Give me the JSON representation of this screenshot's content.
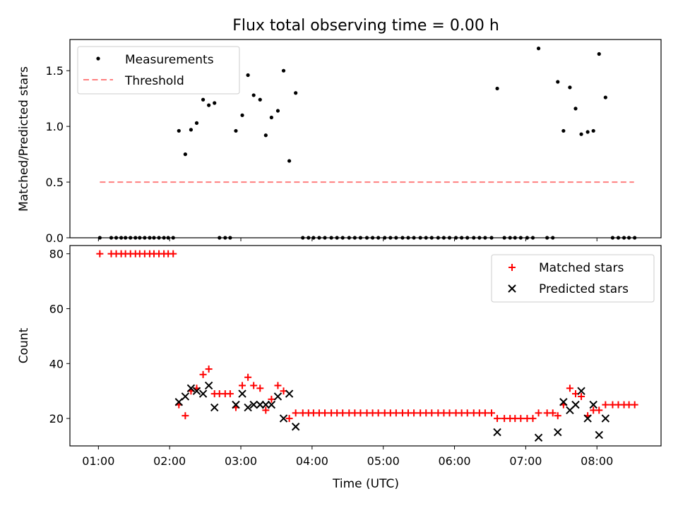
{
  "figure": {
    "title": "Flux total observing time = 0.00 h"
  },
  "chart_data": [
    {
      "type": "scatter",
      "ylabel": "Matched/Predicted stars",
      "ylim": [
        0,
        1.78
      ],
      "xlim_hours": [
        0.6,
        8.9
      ],
      "yticks": [
        {
          "value": 0.0,
          "label": "0.0"
        },
        {
          "value": 0.5,
          "label": "0.5"
        },
        {
          "value": 1.0,
          "label": "1.0"
        },
        {
          "value": 1.5,
          "label": "1.5"
        }
      ],
      "legend_position": "top-left",
      "legend": [
        {
          "label": "Measurements",
          "marker": "dot",
          "color": "#000000"
        },
        {
          "label": "Threshold",
          "marker": "dashed-line",
          "color": "#ff7f7f"
        }
      ],
      "threshold": {
        "value": 0.5,
        "x_range": [
          1.02,
          8.52
        ],
        "color": "#ff7f7f"
      },
      "series": [
        {
          "name": "Measurements",
          "color": "#000000",
          "points": [
            [
              1.02,
              0
            ],
            [
              1.18,
              0
            ],
            [
              1.25,
              0
            ],
            [
              1.32,
              0
            ],
            [
              1.38,
              0
            ],
            [
              1.45,
              0
            ],
            [
              1.52,
              0
            ],
            [
              1.58,
              0
            ],
            [
              1.65,
              0
            ],
            [
              1.72,
              0
            ],
            [
              1.78,
              0
            ],
            [
              1.85,
              0
            ],
            [
              1.92,
              0
            ],
            [
              1.98,
              0
            ],
            [
              2.05,
              0
            ],
            [
              2.13,
              0.96
            ],
            [
              2.22,
              0.75
            ],
            [
              2.3,
              0.97
            ],
            [
              2.38,
              1.03
            ],
            [
              2.47,
              1.24
            ],
            [
              2.55,
              1.19
            ],
            [
              2.63,
              1.21
            ],
            [
              2.7,
              0
            ],
            [
              2.78,
              0
            ],
            [
              2.85,
              0
            ],
            [
              2.93,
              0.96
            ],
            [
              3.02,
              1.1
            ],
            [
              3.1,
              1.46
            ],
            [
              3.18,
              1.28
            ],
            [
              3.27,
              1.24
            ],
            [
              3.35,
              0.92
            ],
            [
              3.43,
              1.08
            ],
            [
              3.52,
              1.14
            ],
            [
              3.6,
              1.5
            ],
            [
              3.68,
              0.69
            ],
            [
              3.77,
              1.3
            ],
            [
              3.87,
              0
            ],
            [
              3.95,
              0
            ],
            [
              4.02,
              0
            ],
            [
              4.1,
              0
            ],
            [
              4.18,
              0
            ],
            [
              4.27,
              0
            ],
            [
              4.35,
              0
            ],
            [
              4.43,
              0
            ],
            [
              4.52,
              0
            ],
            [
              4.6,
              0
            ],
            [
              4.68,
              0
            ],
            [
              4.77,
              0
            ],
            [
              4.85,
              0
            ],
            [
              4.93,
              0
            ],
            [
              5.02,
              0
            ],
            [
              5.1,
              0
            ],
            [
              5.18,
              0
            ],
            [
              5.27,
              0
            ],
            [
              5.35,
              0
            ],
            [
              5.43,
              0
            ],
            [
              5.52,
              0
            ],
            [
              5.6,
              0
            ],
            [
              5.68,
              0
            ],
            [
              5.77,
              0
            ],
            [
              5.85,
              0
            ],
            [
              5.93,
              0
            ],
            [
              6.02,
              0
            ],
            [
              6.1,
              0
            ],
            [
              6.18,
              0
            ],
            [
              6.27,
              0
            ],
            [
              6.35,
              0
            ],
            [
              6.43,
              0
            ],
            [
              6.52,
              0
            ],
            [
              6.6,
              1.34
            ],
            [
              6.7,
              0
            ],
            [
              6.78,
              0
            ],
            [
              6.85,
              0
            ],
            [
              6.93,
              0
            ],
            [
              7.02,
              0
            ],
            [
              7.1,
              0
            ],
            [
              7.18,
              1.7
            ],
            [
              7.3,
              0
            ],
            [
              7.38,
              0
            ],
            [
              7.45,
              1.4
            ],
            [
              7.53,
              0.96
            ],
            [
              7.62,
              1.35
            ],
            [
              7.7,
              1.16
            ],
            [
              7.78,
              0.93
            ],
            [
              7.87,
              0.95
            ],
            [
              7.95,
              0.96
            ],
            [
              8.03,
              1.65
            ],
            [
              8.12,
              1.26
            ],
            [
              8.22,
              0
            ],
            [
              8.3,
              0
            ],
            [
              8.38,
              0
            ],
            [
              8.45,
              0
            ],
            [
              8.53,
              0
            ]
          ]
        }
      ]
    },
    {
      "type": "scatter",
      "ylabel": "Count",
      "xlabel": "Time (UTC)",
      "ylim": [
        10,
        83
      ],
      "xlim_hours": [
        0.6,
        8.9
      ],
      "yticks": [
        {
          "value": 20,
          "label": "20"
        },
        {
          "value": 40,
          "label": "40"
        },
        {
          "value": 60,
          "label": "60"
        },
        {
          "value": 80,
          "label": "80"
        }
      ],
      "xticks": [
        {
          "value": 1,
          "label": "01:00"
        },
        {
          "value": 2,
          "label": "02:00"
        },
        {
          "value": 3,
          "label": "03:00"
        },
        {
          "value": 4,
          "label": "04:00"
        },
        {
          "value": 5,
          "label": "05:00"
        },
        {
          "value": 6,
          "label": "06:00"
        },
        {
          "value": 7,
          "label": "07:00"
        },
        {
          "value": 8,
          "label": "08:00"
        }
      ],
      "legend_position": "top-right",
      "legend": [
        {
          "label": "Matched stars",
          "marker": "plus",
          "color": "#ff0000"
        },
        {
          "label": "Predicted stars",
          "marker": "x",
          "color": "#000000"
        }
      ],
      "series": [
        {
          "name": "Matched stars",
          "color": "#ff0000",
          "marker": "plus",
          "points": [
            [
              1.02,
              80
            ],
            [
              1.18,
              80
            ],
            [
              1.25,
              80
            ],
            [
              1.32,
              80
            ],
            [
              1.38,
              80
            ],
            [
              1.45,
              80
            ],
            [
              1.52,
              80
            ],
            [
              1.58,
              80
            ],
            [
              1.65,
              80
            ],
            [
              1.72,
              80
            ],
            [
              1.78,
              80
            ],
            [
              1.85,
              80
            ],
            [
              1.92,
              80
            ],
            [
              1.98,
              80
            ],
            [
              2.05,
              80
            ],
            [
              2.13,
              25
            ],
            [
              2.22,
              21
            ],
            [
              2.3,
              30
            ],
            [
              2.38,
              31
            ],
            [
              2.47,
              36
            ],
            [
              2.55,
              38
            ],
            [
              2.63,
              29
            ],
            [
              2.7,
              29
            ],
            [
              2.78,
              29
            ],
            [
              2.85,
              29
            ],
            [
              2.93,
              24
            ],
            [
              3.02,
              32
            ],
            [
              3.1,
              35
            ],
            [
              3.18,
              32
            ],
            [
              3.27,
              31
            ],
            [
              3.35,
              23
            ],
            [
              3.43,
              27
            ],
            [
              3.52,
              32
            ],
            [
              3.6,
              30
            ],
            [
              3.68,
              20
            ],
            [
              3.77,
              22
            ],
            [
              3.87,
              22
            ],
            [
              3.95,
              22
            ],
            [
              4.02,
              22
            ],
            [
              4.1,
              22
            ],
            [
              4.18,
              22
            ],
            [
              4.27,
              22
            ],
            [
              4.35,
              22
            ],
            [
              4.43,
              22
            ],
            [
              4.52,
              22
            ],
            [
              4.6,
              22
            ],
            [
              4.68,
              22
            ],
            [
              4.77,
              22
            ],
            [
              4.85,
              22
            ],
            [
              4.93,
              22
            ],
            [
              5.02,
              22
            ],
            [
              5.1,
              22
            ],
            [
              5.18,
              22
            ],
            [
              5.27,
              22
            ],
            [
              5.35,
              22
            ],
            [
              5.43,
              22
            ],
            [
              5.52,
              22
            ],
            [
              5.6,
              22
            ],
            [
              5.68,
              22
            ],
            [
              5.77,
              22
            ],
            [
              5.85,
              22
            ],
            [
              5.93,
              22
            ],
            [
              6.02,
              22
            ],
            [
              6.1,
              22
            ],
            [
              6.18,
              22
            ],
            [
              6.27,
              22
            ],
            [
              6.35,
              22
            ],
            [
              6.43,
              22
            ],
            [
              6.52,
              22
            ],
            [
              6.6,
              20
            ],
            [
              6.7,
              20
            ],
            [
              6.78,
              20
            ],
            [
              6.85,
              20
            ],
            [
              6.93,
              20
            ],
            [
              7.02,
              20
            ],
            [
              7.1,
              20
            ],
            [
              7.18,
              22
            ],
            [
              7.3,
              22
            ],
            [
              7.38,
              22
            ],
            [
              7.45,
              21
            ],
            [
              7.53,
              25
            ],
            [
              7.62,
              31
            ],
            [
              7.7,
              29
            ],
            [
              7.78,
              28
            ],
            [
              7.87,
              21
            ],
            [
              7.95,
              23
            ],
            [
              8.03,
              23
            ],
            [
              8.12,
              25
            ],
            [
              8.22,
              25
            ],
            [
              8.3,
              25
            ],
            [
              8.38,
              25
            ],
            [
              8.45,
              25
            ],
            [
              8.53,
              25
            ]
          ]
        },
        {
          "name": "Predicted stars",
          "color": "#000000",
          "marker": "x",
          "points": [
            [
              2.13,
              26
            ],
            [
              2.22,
              28
            ],
            [
              2.3,
              31
            ],
            [
              2.38,
              30
            ],
            [
              2.47,
              29
            ],
            [
              2.55,
              32
            ],
            [
              2.63,
              24
            ],
            [
              2.93,
              25
            ],
            [
              3.02,
              29
            ],
            [
              3.1,
              24
            ],
            [
              3.18,
              25
            ],
            [
              3.27,
              25
            ],
            [
              3.35,
              25
            ],
            [
              3.43,
              25
            ],
            [
              3.52,
              28
            ],
            [
              3.6,
              20
            ],
            [
              3.68,
              29
            ],
            [
              3.77,
              17
            ],
            [
              6.6,
              15
            ],
            [
              7.18,
              13
            ],
            [
              7.45,
              15
            ],
            [
              7.53,
              26
            ],
            [
              7.62,
              23
            ],
            [
              7.7,
              25
            ],
            [
              7.78,
              30
            ],
            [
              7.87,
              20
            ],
            [
              7.95,
              25
            ],
            [
              8.03,
              14
            ],
            [
              8.12,
              20
            ]
          ]
        }
      ]
    }
  ]
}
